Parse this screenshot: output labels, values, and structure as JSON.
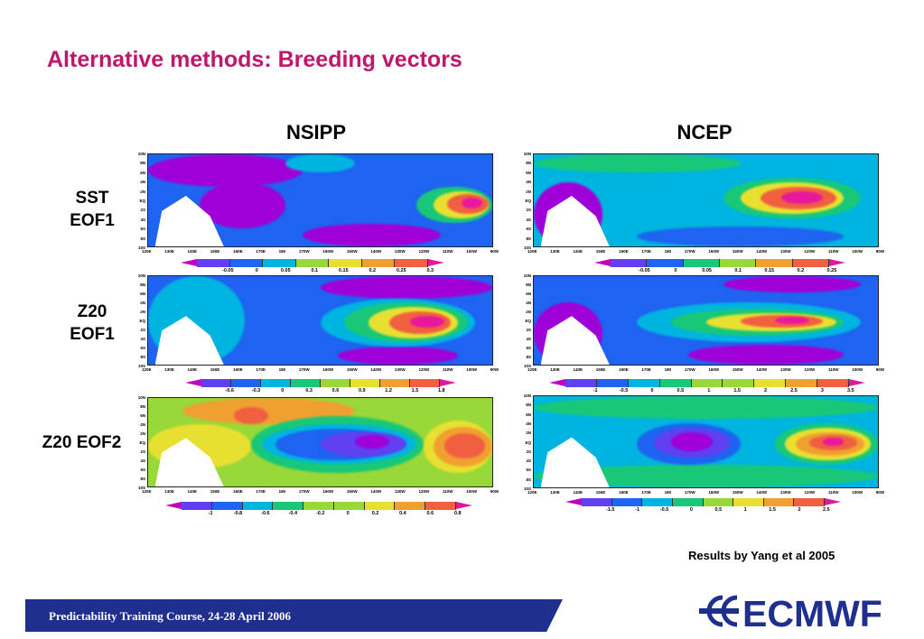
{
  "slide": {
    "title": "Alternative methods: Breeding vectors",
    "columns": [
      "NSIPP",
      "NCEP"
    ],
    "rows": [
      "SST\nEOF1",
      "Z20\nEOF1",
      "Z20 EOF2"
    ],
    "credit": "Results by Yang et al 2005",
    "footer": "Predictability Training Course, 24-28 April 2006",
    "logo_text": "ECMWF"
  },
  "map_axes": {
    "lat_labels": [
      "10N",
      "8N",
      "6N",
      "4N",
      "2N",
      "EQ",
      "2S",
      "4S",
      "6S",
      "8S",
      "10S"
    ],
    "lon_labels": [
      "120E",
      "130E",
      "140E",
      "150E",
      "160E",
      "170E",
      "180",
      "170W",
      "160W",
      "150W",
      "140W",
      "130W",
      "120W",
      "110W",
      "100W",
      "90W"
    ]
  },
  "colorbars": {
    "nsipp_sst": [
      "-0.05",
      "0",
      "0.05",
      "0.1",
      "0.15",
      "0.2",
      "0.25",
      "0.3"
    ],
    "ncep_sst": [
      "-0.05",
      "0",
      "0.05",
      "0.1",
      "0.15",
      "0.2",
      "0.25"
    ],
    "nsipp_z20_1": [
      "-0.6",
      "-0.3",
      "0",
      "0.3",
      "0.6",
      "0.9",
      "1.2",
      "1.5",
      "1.8"
    ],
    "ncep_z20_1": [
      "-1",
      "-0.5",
      "0",
      "0.5",
      "1",
      "1.5",
      "2",
      "2.5",
      "3",
      "3.5"
    ],
    "nsipp_z20_2": [
      "-1",
      "-0.8",
      "-0.6",
      "-0.4",
      "-0.2",
      "0",
      "0.2",
      "0.4",
      "0.6",
      "0.8"
    ],
    "ncep_z20_2": [
      "-1.5",
      "-1",
      "-0.5",
      "0",
      "0.5",
      "1",
      "1.5",
      "2",
      "2.5"
    ]
  },
  "colors": {
    "title": "#c0166b",
    "footer_bg": "#1e2f8e",
    "logo": "#1e2f8e",
    "scale": [
      "#a000d8",
      "#6040f0",
      "#1e64f0",
      "#00b4e0",
      "#18c878",
      "#98d838",
      "#e8e030",
      "#f0a030",
      "#f06040",
      "#e8189c"
    ]
  }
}
